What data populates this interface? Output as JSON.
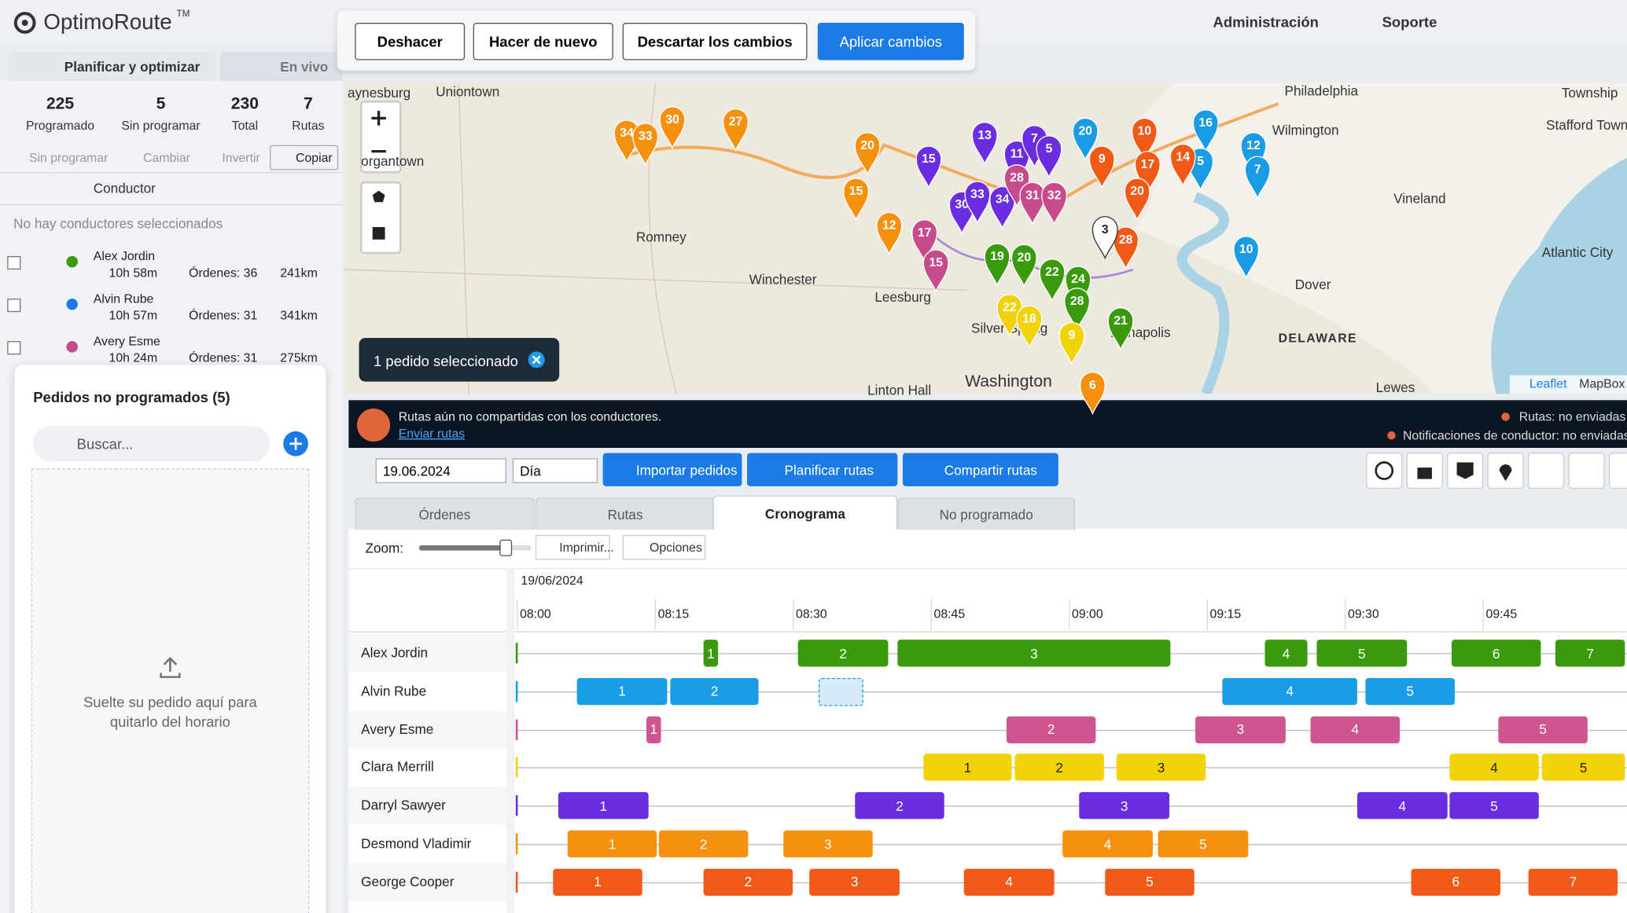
{
  "app": {
    "logo": "OptimoRoute",
    "tm": "TM"
  },
  "header": {
    "admin": "Administración",
    "support": "Soporte"
  },
  "actions": [
    "Deshacer",
    "Hacer de nuevo",
    "Descartar los cambios",
    "Aplicar cambios"
  ],
  "tabs": [
    "Planificar y optimizar",
    "En vivo"
  ],
  "stats": [
    {
      "value": "225",
      "label": "Programado"
    },
    {
      "value": "5",
      "label": "Sin programar"
    },
    {
      "value": "230",
      "label": "Total"
    },
    {
      "value": "7",
      "label": "Rutas"
    }
  ],
  "tools": [
    "Sin programar",
    "Cambiar",
    "Invertir",
    "Copiar"
  ],
  "driver_header": "Conductor",
  "no_drivers": "No hay conductores seleccionados",
  "drivers": [
    {
      "name": "Alex Jordin",
      "time": "10h 58m",
      "orders": "Órdenes: 36",
      "distance": "241km",
      "color": "#3a9a0e"
    },
    {
      "name": "Alvin Rube",
      "time": "10h 57m",
      "orders": "Órdenes: 31",
      "distance": "341km",
      "color": "#1a7be6"
    },
    {
      "name": "Avery Esme",
      "time": "10h 24m",
      "orders": "Órdenes: 31",
      "distance": "275km",
      "color": "#c74a8a"
    }
  ],
  "unscheduled": {
    "title": "Pedidos no programados (5)",
    "search": "Buscar...",
    "drop": "Suelte su pedido aquí para quitarlo del horario"
  },
  "map": {
    "places": [
      "aynesburg",
      "Uniontown",
      "organtown",
      "Romney",
      "Winchester",
      "Leesburg",
      "Philadelphia",
      "Wilmington",
      "Vineland",
      "Atlantic City",
      "Dover",
      "DELAWARE",
      "Washington",
      "Linton Hall",
      "Lewes",
      "Township",
      "Stafford Township",
      "Silver Spring",
      "Annapolis"
    ],
    "pins": [
      {
        "label": "34",
        "color": "#f5910e"
      },
      {
        "label": "33",
        "color": "#f5910e"
      },
      {
        "label": "30",
        "color": "#f5910e"
      },
      {
        "label": "27",
        "color": "#f5910e"
      },
      {
        "label": "20",
        "color": "#f5910e"
      },
      {
        "label": "15",
        "color": "#f5910e"
      },
      {
        "label": "12",
        "color": "#f5910e"
      },
      {
        "label": "13",
        "color": "#6a2ee0"
      },
      {
        "label": "11",
        "color": "#6a2ee0"
      },
      {
        "label": "7",
        "color": "#6a2ee0"
      },
      {
        "label": "5",
        "color": "#6a2ee0"
      },
      {
        "label": "20",
        "color": "#1a9be6"
      },
      {
        "label": "9",
        "color": "#f05a16"
      },
      {
        "label": "10",
        "color": "#f05a16"
      },
      {
        "label": "17",
        "color": "#f05a16"
      },
      {
        "label": "16",
        "color": "#1a9be6"
      },
      {
        "label": "12",
        "color": "#1a9be6"
      },
      {
        "label": "7",
        "color": "#1a9be6"
      },
      {
        "label": "5",
        "color": "#1a9be6"
      },
      {
        "label": "14",
        "color": "#f05a16"
      },
      {
        "label": "15",
        "color": "#6a2ee0"
      },
      {
        "label": "30",
        "color": "#6a2ee0"
      },
      {
        "label": "33",
        "color": "#6a2ee0"
      },
      {
        "label": "34",
        "color": "#6a2ee0"
      },
      {
        "label": "28",
        "color": "#c74a8a"
      },
      {
        "label": "31",
        "color": "#c74a8a"
      },
      {
        "label": "32",
        "color": "#c74a8a"
      },
      {
        "label": "17",
        "color": "#c74a8a"
      },
      {
        "label": "15",
        "color": "#c74a8a"
      },
      {
        "label": "19",
        "color": "#3a9a0e"
      },
      {
        "label": "20",
        "color": "#3a9a0e"
      },
      {
        "label": "22",
        "color": "#3a9a0e"
      },
      {
        "label": "24",
        "color": "#3a9a0e"
      },
      {
        "label": "28",
        "color": "#3a9a0e"
      },
      {
        "label": "22",
        "color": "#f2d20a"
      },
      {
        "label": "18",
        "color": "#f2d20a"
      },
      {
        "label": "9",
        "color": "#f2d20a"
      },
      {
        "label": "20",
        "color": "#f05a16"
      },
      {
        "label": "28",
        "color": "#f05a16"
      },
      {
        "label": "10",
        "color": "#1a9be6"
      },
      {
        "label": "3",
        "color": "#ffffff"
      },
      {
        "label": "6",
        "color": "#f5910e"
      },
      {
        "label": "21",
        "color": "#3a9a0e"
      }
    ],
    "selection": "1 pedido seleccionado",
    "attribution": [
      "Leaflet",
      "MapBox"
    ]
  },
  "banner": {
    "message": "Rutas aún no compartidas con los conductores.",
    "link": "Enviar rutas",
    "status": [
      "Rutas: no enviadas",
      "Notificaciones de conductor: no enviadas"
    ]
  },
  "toolbar": {
    "date": "19.06.2024",
    "view": "Día",
    "buttons": [
      "Importar pedidos",
      "Planificar rutas",
      "Compartir rutas"
    ]
  },
  "view_tabs": [
    "Órdenes",
    "Rutas",
    "Cronograma",
    "No programado"
  ],
  "timeline": {
    "zoom": "Zoom:",
    "print": "Imprimir...",
    "options": "Opciones",
    "date": "19/06/2024",
    "times": [
      "08:00",
      "08:15",
      "08:30",
      "08:45",
      "09:00",
      "09:15",
      "09:30",
      "09:45"
    ],
    "rows": [
      {
        "driver": "Alex Jordin",
        "color": "#3a9a0e",
        "orders": [
          "1",
          "2",
          "3",
          "4",
          "5",
          "6",
          "7"
        ]
      },
      {
        "driver": "Alvin Rube",
        "color": "#1a9be6",
        "orders": [
          "1",
          "2",
          "4",
          "5"
        ]
      },
      {
        "driver": "Avery Esme",
        "color": "#d0558f",
        "orders": [
          "1",
          "2",
          "3",
          "4",
          "5"
        ]
      },
      {
        "driver": "Clara Merrill",
        "color": "#f2d20a",
        "orders": [
          "1",
          "2",
          "3",
          "4",
          "5"
        ]
      },
      {
        "driver": "Darryl Sawyer",
        "color": "#6a2ee0",
        "orders": [
          "1",
          "2",
          "3",
          "4",
          "5"
        ]
      },
      {
        "driver": "Desmond Vladimir",
        "color": "#f5910e",
        "orders": [
          "1",
          "2",
          "3",
          "4",
          "5"
        ]
      },
      {
        "driver": "George Cooper",
        "color": "#f05a16",
        "orders": [
          "1",
          "2",
          "3",
          "4",
          "5",
          "6",
          "7"
        ]
      }
    ]
  }
}
